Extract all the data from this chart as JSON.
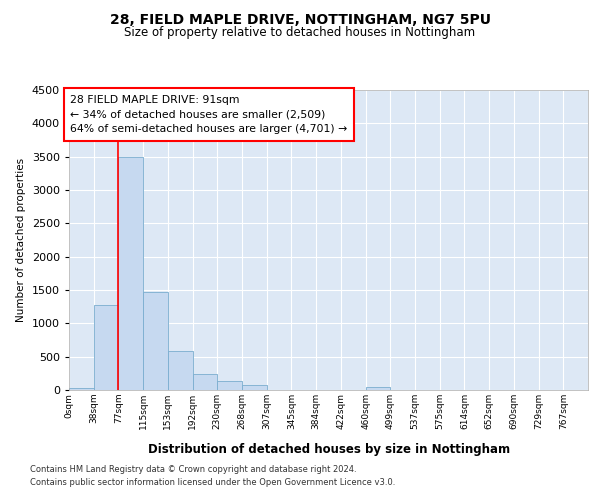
{
  "title1": "28, FIELD MAPLE DRIVE, NOTTINGHAM, NG7 5PU",
  "title2": "Size of property relative to detached houses in Nottingham",
  "xlabel": "Distribution of detached houses by size in Nottingham",
  "ylabel": "Number of detached properties",
  "bin_labels": [
    "0sqm",
    "38sqm",
    "77sqm",
    "115sqm",
    "153sqm",
    "192sqm",
    "230sqm",
    "268sqm",
    "307sqm",
    "345sqm",
    "384sqm",
    "422sqm",
    "460sqm",
    "499sqm",
    "537sqm",
    "575sqm",
    "614sqm",
    "652sqm",
    "690sqm",
    "729sqm",
    "767sqm"
  ],
  "bin_values": [
    30,
    1280,
    3500,
    1470,
    580,
    240,
    135,
    75,
    0,
    0,
    0,
    0,
    50,
    0,
    0,
    0,
    0,
    0,
    0,
    0,
    0
  ],
  "bar_color": "#c6d9f0",
  "bar_edge_color": "#7aadcf",
  "red_line_x": 2,
  "annotation_line1": "28 FIELD MAPLE DRIVE: 91sqm",
  "annotation_line2": "← 34% of detached houses are smaller (2,509)",
  "annotation_line3": "64% of semi-detached houses are larger (4,701) →",
  "ylim_max": 4500,
  "yticks": [
    0,
    500,
    1000,
    1500,
    2000,
    2500,
    3000,
    3500,
    4000,
    4500
  ],
  "footer1": "Contains HM Land Registry data © Crown copyright and database right 2024.",
  "footer2": "Contains public sector information licensed under the Open Government Licence v3.0.",
  "plot_bg": "#dde8f5",
  "fig_bg": "white",
  "grid_color": "white"
}
